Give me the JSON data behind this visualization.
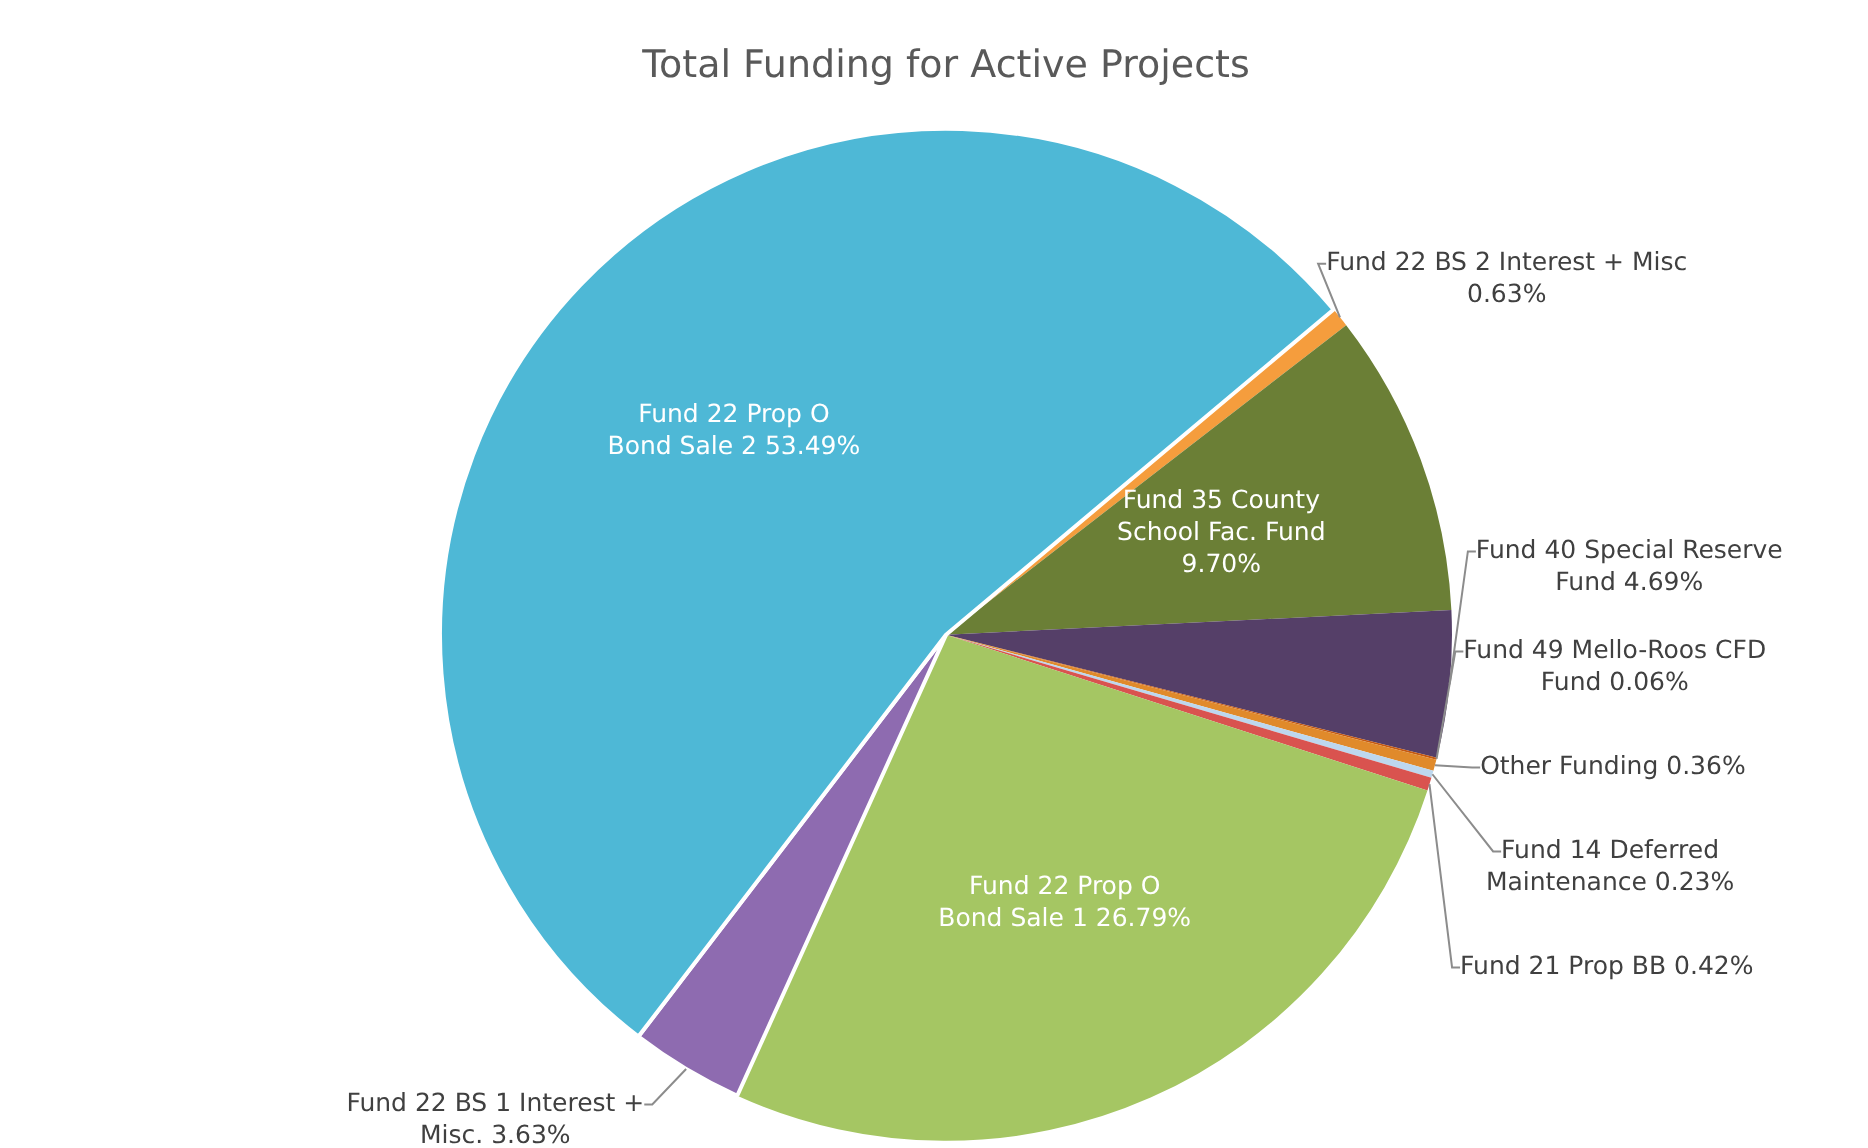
{
  "chart_data": {
    "type": "pie",
    "title": "Total Funding for Active Projects",
    "categories": [
      "Fund 22 BS 2 Interest + Misc",
      "Fund 35 County School Fac. Fund",
      "Fund 40 Special Reserve Fund",
      "Fund 49 Mello-Roos CFD Fund",
      "Other Funding",
      "Fund 14 Deferred Maintenance",
      "Fund 21 Prop BB",
      "Fund 22 Prop O Bond Sale 1",
      "Fund 22 BS 1 Interest + Misc.",
      "Fund 22 Prop O Bond Sale 2"
    ],
    "values": [
      0.63,
      9.7,
      4.69,
      0.06,
      0.36,
      0.23,
      0.42,
      26.79,
      3.63,
      53.49
    ],
    "value_labels": [
      "0.63%",
      "9.70%",
      "4.69%",
      "0.06%",
      "0.36%",
      "0.23%",
      "0.42%",
      "26.79%",
      "3.63%",
      "53.49%"
    ],
    "colors": [
      "#f59d3d",
      "#6b7f36",
      "#553f68",
      "#c55a11",
      "#e08a2b",
      "#bdd7ee",
      "#d9534f",
      "#a5c663",
      "#8e6bb0",
      "#4eb8d6"
    ],
    "legend": false
  }
}
